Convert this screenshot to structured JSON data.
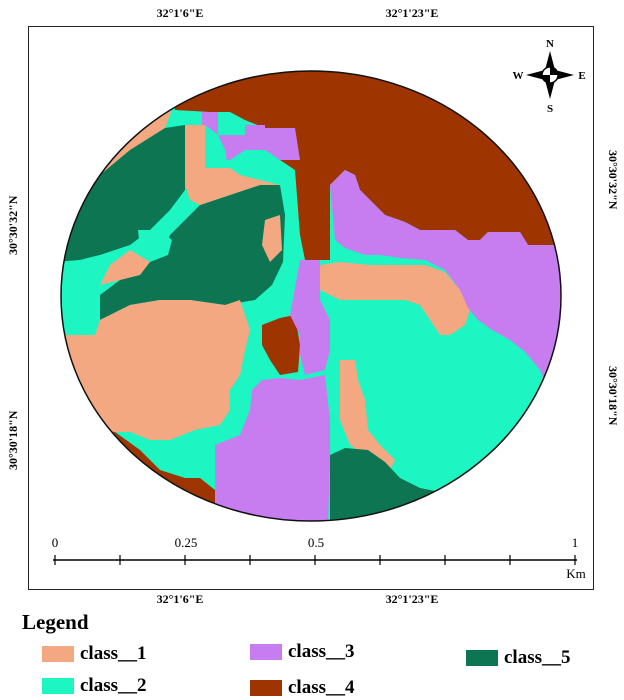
{
  "coordinates": {
    "top": [
      "32°1'6\"E",
      "32°1'23\"E"
    ],
    "bottom": [
      "32°1'6\"E",
      "32°1'23\"E"
    ],
    "left": [
      "30°30'32\"N",
      "30°30'18\"N"
    ],
    "right": [
      "30°30'32\"N",
      "30°30'18\"N"
    ]
  },
  "compass": {
    "n": "N",
    "s": "S",
    "e": "E",
    "w": "W"
  },
  "scale_bar": {
    "ticks": [
      "0",
      "0.25",
      "0.5",
      "1"
    ],
    "values": [
      0,
      0.25,
      0.5,
      1
    ],
    "unit": "Km"
  },
  "legend": {
    "title": "Legend",
    "items": [
      {
        "label": "class__1",
        "color": "#F4A882"
      },
      {
        "label": "class__2",
        "color": "#1DF5C3"
      },
      {
        "label": "class__3",
        "color": "#C77DF0"
      },
      {
        "label": "class__4",
        "color": "#9E3500"
      },
      {
        "label": "class__5",
        "color": "#0E7552"
      }
    ]
  }
}
